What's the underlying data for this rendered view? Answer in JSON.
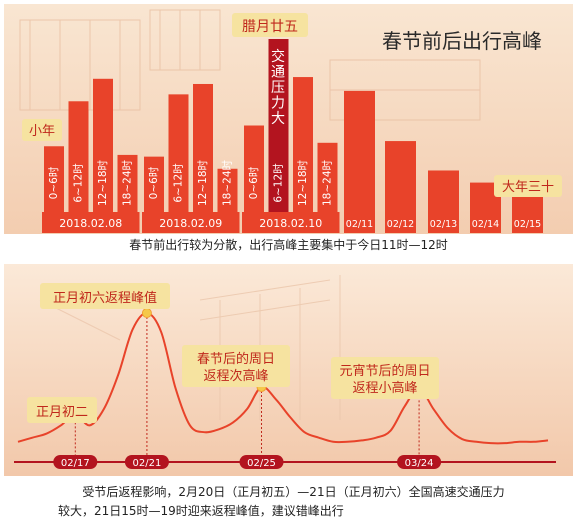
{
  "chart_data": [
    {
      "type": "bar",
      "title": "春节前后出行高峰",
      "caption": "春节前出行较为分散，出行高峰主要集中于今日11时—12时",
      "groups": [
        {
          "label": "2018.02.08",
          "categories": [
            "0~6时",
            "6~12时",
            "12~18时",
            "18~24时"
          ],
          "values": [
            0.38,
            0.64,
            0.77,
            0.33
          ]
        },
        {
          "label": "2018.02.09",
          "categories": [
            "0~6时",
            "6~12时",
            "12~18时",
            "18~24时"
          ],
          "values": [
            0.32,
            0.68,
            0.74,
            0.25
          ]
        },
        {
          "label": "2018.02.10",
          "categories": [
            "0~6时",
            "6~12时",
            "12~18时",
            "18~24时"
          ],
          "values": [
            0.5,
            1.0,
            0.78,
            0.4
          ]
        }
      ],
      "daily": {
        "categories": [
          "02/11",
          "02/12",
          "02/13",
          "02/14",
          "02/15"
        ],
        "values": [
          0.7,
          0.41,
          0.24,
          0.17,
          0.11
        ]
      },
      "annotations": [
        {
          "text": "小年",
          "target": "2018.02.08"
        },
        {
          "text": "腊月廿五",
          "target": "2018.02.10"
        },
        {
          "text": "交通压力大",
          "target": "2018.02.10 6~12时"
        },
        {
          "text": "大年三十",
          "target": "02/15"
        }
      ],
      "colors": {
        "bar": "#e8432a",
        "peak": "#b3141f",
        "band": "#e8432a",
        "background": "#f7dcc0"
      }
    },
    {
      "type": "line",
      "caption_line1": "受节后返程影响，2月20日（正月初五）—21日（正月初六）全国高速交通压力",
      "caption_line2": "较大，21日15时—19时迎来返程峰值，建议错峰出行",
      "x_ticks": [
        "02/17",
        "02/21",
        "02/25",
        "03/24"
      ],
      "series": [
        {
          "values": [
            0.06,
            0.09,
            0.12,
            0.18,
            0.26,
            0.18,
            0.3,
            0.55,
            0.88,
            1.0,
            0.86,
            0.45,
            0.18,
            0.13,
            0.15,
            0.2,
            0.3,
            0.46,
            0.37,
            0.24,
            0.13,
            0.09,
            0.06,
            0.06,
            0.07,
            0.09,
            0.14,
            0.32,
            0.45,
            0.3,
            0.16,
            0.08,
            0.06,
            0.05,
            0.05,
            0.06,
            0.06,
            0.07
          ]
        }
      ],
      "annotations": [
        {
          "text": "正月初二",
          "at": "02/17"
        },
        {
          "text": "正月初六返程峰值",
          "at": "02/21"
        },
        {
          "text": "春节后的周日返程次高峰",
          "at": "02/25"
        },
        {
          "text": "元宵节后的周日返程小高峰",
          "at": "03/24"
        }
      ],
      "colors": {
        "line": "#e8432a",
        "marker": "#f5c84a",
        "axis": "#b3141f",
        "background": "#f7dcc0",
        "callout": "#f6e3a0"
      }
    }
  ]
}
